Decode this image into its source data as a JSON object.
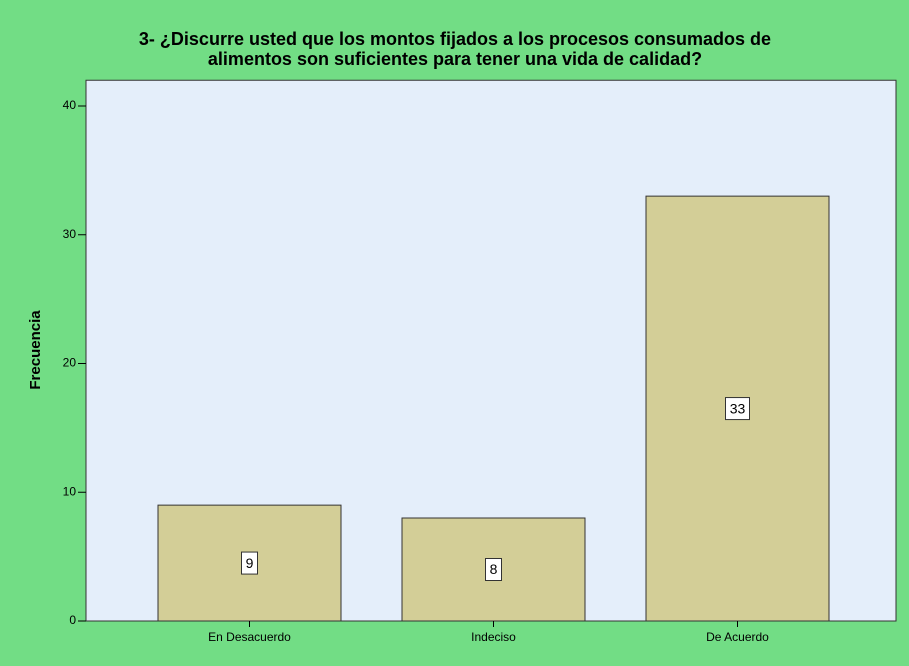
{
  "chart_data": {
    "type": "bar",
    "title": [
      "3- ¿Discurre usted que los montos fijados a los procesos consumados de",
      "alimentos son suficientes para tener una vida de calidad?"
    ],
    "y_label": "Frecuencia",
    "categories": [
      "En Desacuerdo",
      "Indeciso",
      "De Acuerdo"
    ],
    "values": [
      9,
      8,
      33
    ],
    "color": "#d3ce97",
    "ylim": [
      0,
      42
    ],
    "yticks": [
      0,
      10,
      20,
      30,
      40
    ],
    "grid": false
  }
}
